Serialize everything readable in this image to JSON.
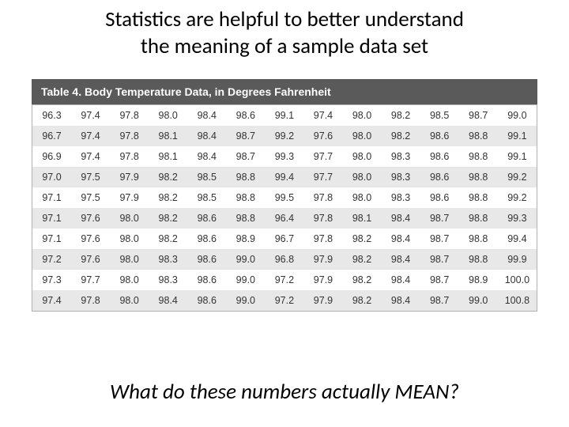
{
  "heading_line1": "Statistics are helpful to better understand",
  "heading_line2": "the meaning of a sample data set",
  "table_caption": "Table 4. Body Temperature Data, in Degrees Fahrenheit",
  "table": {
    "type": "table",
    "columns": 13,
    "rows": [
      [
        "96.3",
        "97.4",
        "97.8",
        "98.0",
        "98.4",
        "98.6",
        "99.1",
        "97.4",
        "98.0",
        "98.2",
        "98.5",
        "98.7",
        "99.0"
      ],
      [
        "96.7",
        "97.4",
        "97.8",
        "98.1",
        "98.4",
        "98.7",
        "99.2",
        "97.6",
        "98.0",
        "98.2",
        "98.6",
        "98.8",
        "99.1"
      ],
      [
        "96.9",
        "97.4",
        "97.8",
        "98.1",
        "98.4",
        "98.7",
        "99.3",
        "97.7",
        "98.0",
        "98.3",
        "98.6",
        "98.8",
        "99.1"
      ],
      [
        "97.0",
        "97.5",
        "97.9",
        "98.2",
        "98.5",
        "98.8",
        "99.4",
        "97.7",
        "98.0",
        "98.3",
        "98.6",
        "98.8",
        "99.2"
      ],
      [
        "97.1",
        "97.5",
        "97.9",
        "98.2",
        "98.5",
        "98.8",
        "99.5",
        "97.8",
        "98.0",
        "98.3",
        "98.6",
        "98.8",
        "99.2"
      ],
      [
        "97.1",
        "97.6",
        "98.0",
        "98.2",
        "98.6",
        "98.8",
        "96.4",
        "97.8",
        "98.1",
        "98.4",
        "98.7",
        "98.8",
        "99.3"
      ],
      [
        "97.1",
        "97.6",
        "98.0",
        "98.2",
        "98.6",
        "98.9",
        "96.7",
        "97.8",
        "98.2",
        "98.4",
        "98.7",
        "98.8",
        "99.4"
      ],
      [
        "97.2",
        "97.6",
        "98.0",
        "98.3",
        "98.6",
        "99.0",
        "96.8",
        "97.9",
        "98.2",
        "98.4",
        "98.7",
        "98.8",
        "99.9"
      ],
      [
        "97.3",
        "97.7",
        "98.0",
        "98.3",
        "98.6",
        "99.0",
        "97.2",
        "97.9",
        "98.2",
        "98.4",
        "98.7",
        "98.9",
        "100.0"
      ],
      [
        "97.4",
        "97.8",
        "98.0",
        "98.4",
        "98.6",
        "99.0",
        "97.2",
        "97.9",
        "98.2",
        "98.4",
        "98.7",
        "99.0",
        "100.8"
      ]
    ],
    "row_odd_bg": "#ffffff",
    "row_even_bg": "#e8e8e8",
    "border_color": "#b0b0b0",
    "caption_bg": "#5a5a5a",
    "caption_color": "#ffffff",
    "cell_font_size": 12.5,
    "cell_text_color": "#333333"
  },
  "question": "What do these numbers actually MEAN?"
}
